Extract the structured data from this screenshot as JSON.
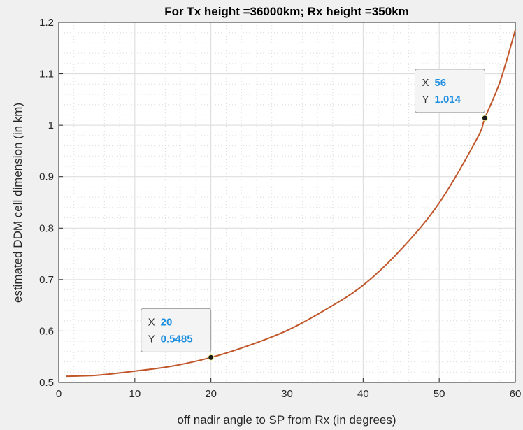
{
  "chart_data": {
    "type": "line",
    "title": "For Tx height =36000km; Rx height =350km",
    "xlabel": "off nadir angle to SP from Rx (in degrees)",
    "ylabel": "estimated DDM cell dimension (in km)",
    "xlim": [
      0,
      60
    ],
    "ylim": [
      0.5,
      1.2
    ],
    "xticks": [
      "0",
      "10",
      "20",
      "30",
      "40",
      "50",
      "60"
    ],
    "yticks": [
      "0.5",
      "0.6",
      "0.7",
      "0.8",
      "0.9",
      "1",
      "1.1",
      "1.2"
    ],
    "grid": true,
    "minor_grid": true,
    "line_color": "#c0562a",
    "series": [
      {
        "x": [
          1,
          5,
          10,
          15,
          20,
          25,
          30,
          35,
          40,
          45,
          50,
          55,
          56,
          58,
          60
        ],
        "y": [
          0.512,
          0.514,
          0.522,
          0.532,
          0.5485,
          0.572,
          0.601,
          0.641,
          0.689,
          0.759,
          0.849,
          0.975,
          1.014,
          1.085,
          1.185
        ]
      }
    ],
    "datatips": [
      {
        "x_label": "X",
        "x_value": "20",
        "y_label": "Y",
        "y_value": "0.5485",
        "x": 20,
        "y": 0.5485
      },
      {
        "x_label": "X",
        "x_value": "56",
        "y_label": "Y",
        "y_value": "1.014",
        "x": 56,
        "y": 1.014
      }
    ]
  }
}
